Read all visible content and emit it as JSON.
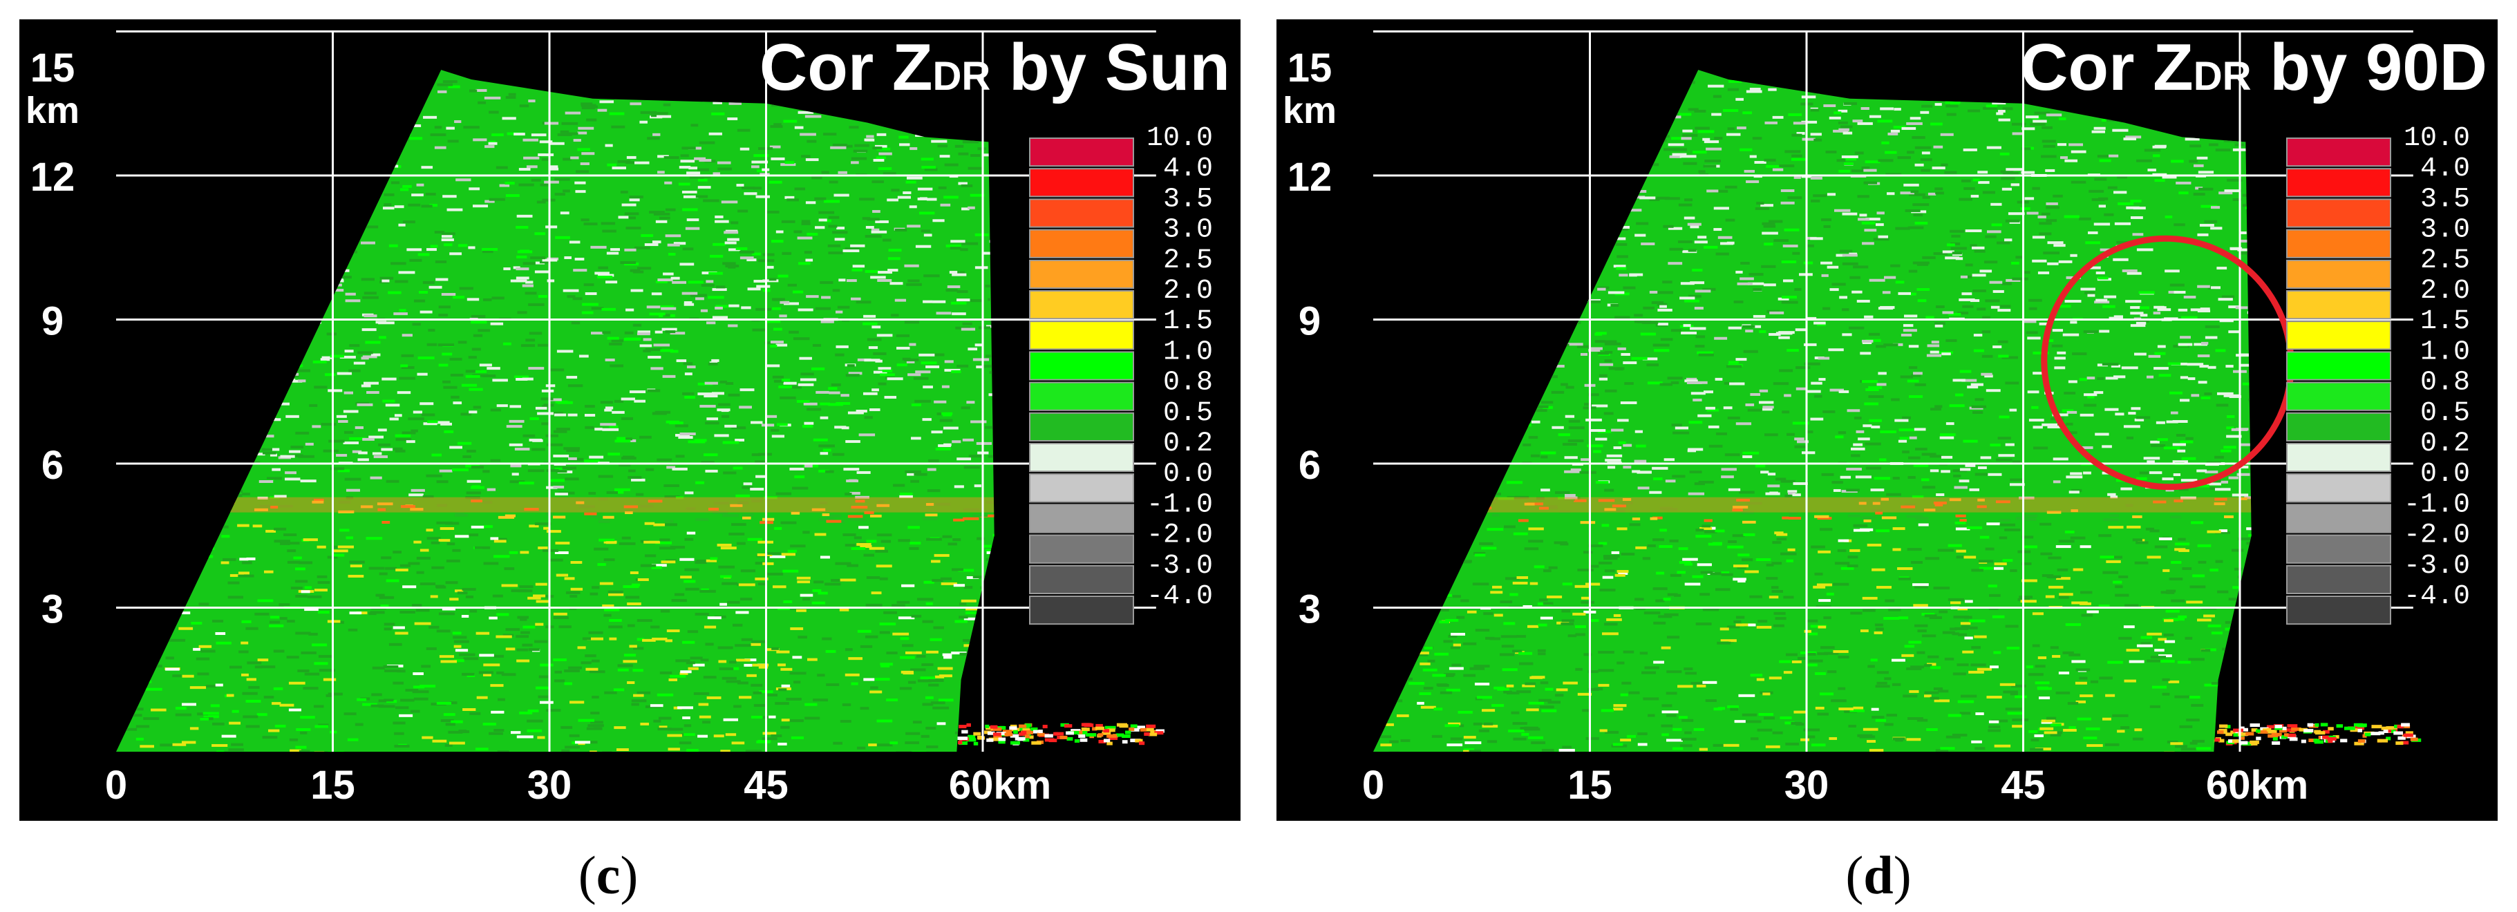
{
  "colors": {
    "background": "#000000",
    "grid": "#ffffff",
    "annotation": "#e8202a"
  },
  "captions": [
    {
      "open": "(",
      "letter": "c",
      "close": ")"
    },
    {
      "open": "(",
      "letter": "d",
      "close": ")"
    }
  ],
  "chart_data": [
    {
      "type": "heatmap",
      "title": "Cor ZDR by Sun",
      "title_main": "Cor Z",
      "title_sub": "DR",
      "title_tail": " by Sun",
      "x_ticks": [
        "0",
        "15",
        "30",
        "45",
        "60km"
      ],
      "x_tick_values": [
        0,
        15,
        30,
        45,
        60
      ],
      "y_ticks": [
        "3",
        "6",
        "9",
        "12",
        "15"
      ],
      "y_tick_values": [
        3,
        6,
        9,
        12,
        15
      ],
      "y_unit": "km",
      "xlim": [
        0,
        72
      ],
      "ylim": [
        0,
        15
      ],
      "grid": true,
      "legend_position": "right",
      "colorbar": [
        {
          "label": "10.0",
          "color": "#d9093a"
        },
        {
          "label": "4.0",
          "color": "#ff1010"
        },
        {
          "label": "3.5",
          "color": "#ff4a1a"
        },
        {
          "label": "3.0",
          "color": "#ff7a14"
        },
        {
          "label": "2.5",
          "color": "#ffa020"
        },
        {
          "label": "2.0",
          "color": "#ffcc22"
        },
        {
          "label": "1.5",
          "color": "#ffff00"
        },
        {
          "label": "1.0",
          "color": "#00ff00"
        },
        {
          "label": "0.8",
          "color": "#1ce81c"
        },
        {
          "label": "0.5",
          "color": "#22bb22"
        },
        {
          "label": "0.2",
          "color": "#e4f4e4"
        },
        {
          "label": "0.0",
          "color": "#c8c8c8"
        },
        {
          "label": "-1.0",
          "color": "#a0a0a0"
        },
        {
          "label": "-2.0",
          "color": "#787878"
        },
        {
          "label": "-3.0",
          "color": "#5a5a5a"
        },
        {
          "label": "-4.0",
          "color": "#404040"
        }
      ],
      "annotation": null
    },
    {
      "type": "heatmap",
      "title": "Cor ZDR by 90D",
      "title_main": "Cor Z",
      "title_sub": "DR",
      "title_tail": " by 90D",
      "x_ticks": [
        "0",
        "15",
        "30",
        "45",
        "60km"
      ],
      "x_tick_values": [
        0,
        15,
        30,
        45,
        60
      ],
      "y_ticks": [
        "3",
        "6",
        "9",
        "12",
        "15"
      ],
      "y_tick_values": [
        3,
        6,
        9,
        12,
        15
      ],
      "y_unit": "km",
      "xlim": [
        0,
        72
      ],
      "ylim": [
        0,
        15
      ],
      "grid": true,
      "legend_position": "right",
      "colorbar": [
        {
          "label": "10.0",
          "color": "#d9093a"
        },
        {
          "label": "4.0",
          "color": "#ff1010"
        },
        {
          "label": "3.5",
          "color": "#ff4a1a"
        },
        {
          "label": "3.0",
          "color": "#ff7a14"
        },
        {
          "label": "2.5",
          "color": "#ffa020"
        },
        {
          "label": "2.0",
          "color": "#ffcc22"
        },
        {
          "label": "1.5",
          "color": "#ffff00"
        },
        {
          "label": "1.0",
          "color": "#00ff00"
        },
        {
          "label": "0.8",
          "color": "#1ce81c"
        },
        {
          "label": "0.5",
          "color": "#22bb22"
        },
        {
          "label": "0.2",
          "color": "#e4f4e4"
        },
        {
          "label": "0.0",
          "color": "#c8c8c8"
        },
        {
          "label": "-1.0",
          "color": "#a0a0a0"
        },
        {
          "label": "-2.0",
          "color": "#787878"
        },
        {
          "label": "-3.0",
          "color": "#5a5a5a"
        },
        {
          "label": "-4.0",
          "color": "#404040"
        }
      ],
      "annotation": {
        "shape": "ellipse",
        "center": [
          55,
          8.1
        ],
        "semi_x": 8.5,
        "semi_y": 2.6,
        "rotation_deg": -35
      }
    }
  ]
}
